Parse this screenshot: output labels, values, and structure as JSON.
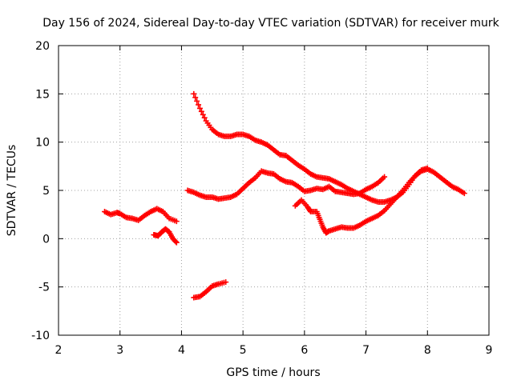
{
  "chart_data": {
    "type": "scatter",
    "title": "Day 156 of 2024, Sidereal Day-to-day VTEC variation (SDTVAR) for receiver murk",
    "xlabel": "GPS time / hours",
    "ylabel": "SDTVAR / TECUs",
    "xlim": [
      2,
      9
    ],
    "ylim": [
      -10,
      20
    ],
    "xticks": [
      2,
      3,
      4,
      5,
      6,
      7,
      8,
      9
    ],
    "yticks": [
      -10,
      -5,
      0,
      5,
      10,
      15,
      20
    ],
    "grid": true,
    "marker": "plus",
    "color": "#ff0000",
    "series": [
      {
        "points": [
          [
            2.75,
            2.8
          ],
          [
            2.85,
            2.5
          ],
          [
            2.95,
            2.7
          ],
          [
            3.0,
            2.6
          ],
          [
            3.1,
            2.2
          ],
          [
            3.2,
            2.1
          ],
          [
            3.3,
            1.9
          ],
          [
            3.4,
            2.4
          ],
          [
            3.5,
            2.8
          ],
          [
            3.6,
            3.1
          ],
          [
            3.7,
            2.8
          ],
          [
            3.8,
            2.1
          ],
          [
            3.92,
            1.8
          ]
        ]
      },
      {
        "points": [
          [
            3.55,
            0.4
          ],
          [
            3.62,
            0.3
          ],
          [
            3.68,
            0.7
          ],
          [
            3.74,
            1.0
          ],
          [
            3.8,
            0.7
          ],
          [
            3.86,
            0.0
          ],
          [
            3.92,
            -0.4
          ]
        ]
      },
      {
        "points": [
          [
            4.2,
            -6.1
          ],
          [
            4.3,
            -6.0
          ],
          [
            4.4,
            -5.5
          ],
          [
            4.5,
            -4.9
          ],
          [
            4.6,
            -4.7
          ],
          [
            4.72,
            -4.5
          ]
        ]
      },
      {
        "points": [
          [
            4.2,
            15.0
          ],
          [
            4.3,
            13.5
          ],
          [
            4.4,
            12.2
          ],
          [
            4.5,
            11.3
          ],
          [
            4.6,
            10.8
          ],
          [
            4.7,
            10.6
          ],
          [
            4.8,
            10.6
          ],
          [
            4.9,
            10.8
          ],
          [
            5.0,
            10.8
          ],
          [
            5.1,
            10.6
          ],
          [
            5.2,
            10.2
          ],
          [
            5.3,
            10.0
          ],
          [
            5.4,
            9.7
          ],
          [
            5.5,
            9.2
          ],
          [
            5.6,
            8.7
          ],
          [
            5.7,
            8.6
          ],
          [
            5.8,
            8.1
          ],
          [
            5.9,
            7.6
          ],
          [
            6.0,
            7.2
          ],
          [
            6.1,
            6.7
          ],
          [
            6.2,
            6.4
          ],
          [
            6.3,
            6.3
          ],
          [
            6.4,
            6.2
          ],
          [
            6.5,
            5.9
          ],
          [
            6.6,
            5.6
          ],
          [
            6.7,
            5.2
          ],
          [
            6.8,
            4.9
          ],
          [
            6.9,
            4.6
          ],
          [
            7.0,
            4.3
          ],
          [
            7.1,
            4.0
          ],
          [
            7.2,
            3.8
          ],
          [
            7.3,
            3.8
          ],
          [
            7.4,
            4.0
          ],
          [
            7.5,
            4.3
          ],
          [
            7.6,
            4.8
          ],
          [
            7.7,
            5.6
          ],
          [
            7.8,
            6.5
          ],
          [
            7.9,
            7.0
          ],
          [
            8.0,
            7.2
          ],
          [
            8.1,
            6.9
          ],
          [
            8.2,
            6.4
          ],
          [
            8.3,
            5.9
          ],
          [
            8.4,
            5.4
          ],
          [
            8.5,
            5.1
          ],
          [
            8.6,
            4.7
          ]
        ]
      },
      {
        "points": [
          [
            4.1,
            5.0
          ],
          [
            4.2,
            4.8
          ],
          [
            4.3,
            4.5
          ],
          [
            4.4,
            4.3
          ],
          [
            4.5,
            4.3
          ],
          [
            4.6,
            4.1
          ],
          [
            4.7,
            4.2
          ],
          [
            4.8,
            4.3
          ],
          [
            4.9,
            4.6
          ],
          [
            5.0,
            5.2
          ],
          [
            5.1,
            5.8
          ],
          [
            5.2,
            6.3
          ],
          [
            5.3,
            7.0
          ],
          [
            5.4,
            6.8
          ],
          [
            5.5,
            6.7
          ],
          [
            5.6,
            6.2
          ],
          [
            5.7,
            5.9
          ],
          [
            5.8,
            5.8
          ],
          [
            5.9,
            5.4
          ],
          [
            6.0,
            4.9
          ],
          [
            6.1,
            5.0
          ],
          [
            6.2,
            5.2
          ],
          [
            6.3,
            5.1
          ],
          [
            6.4,
            5.4
          ],
          [
            6.5,
            4.9
          ],
          [
            6.6,
            4.8
          ],
          [
            6.7,
            4.7
          ],
          [
            6.8,
            4.6
          ],
          [
            6.9,
            4.7
          ],
          [
            7.0,
            5.1
          ],
          [
            7.1,
            5.4
          ],
          [
            7.2,
            5.8
          ],
          [
            7.3,
            6.4
          ]
        ]
      },
      {
        "points": [
          [
            5.85,
            3.4
          ],
          [
            5.95,
            4.0
          ],
          [
            6.05,
            3.3
          ],
          [
            6.1,
            2.8
          ],
          [
            6.2,
            2.8
          ],
          [
            6.25,
            2.0
          ],
          [
            6.3,
            1.2
          ],
          [
            6.35,
            0.6
          ],
          [
            6.4,
            0.8
          ],
          [
            6.5,
            1.0
          ],
          [
            6.6,
            1.2
          ],
          [
            6.7,
            1.1
          ],
          [
            6.8,
            1.1
          ],
          [
            6.9,
            1.4
          ],
          [
            7.0,
            1.8
          ],
          [
            7.1,
            2.1
          ],
          [
            7.2,
            2.4
          ],
          [
            7.3,
            2.9
          ],
          [
            7.4,
            3.6
          ],
          [
            7.5,
            4.3
          ],
          [
            7.6,
            5.0
          ],
          [
            7.7,
            5.8
          ],
          [
            7.8,
            6.5
          ],
          [
            7.9,
            7.1
          ],
          [
            8.0,
            7.3
          ]
        ]
      }
    ]
  }
}
